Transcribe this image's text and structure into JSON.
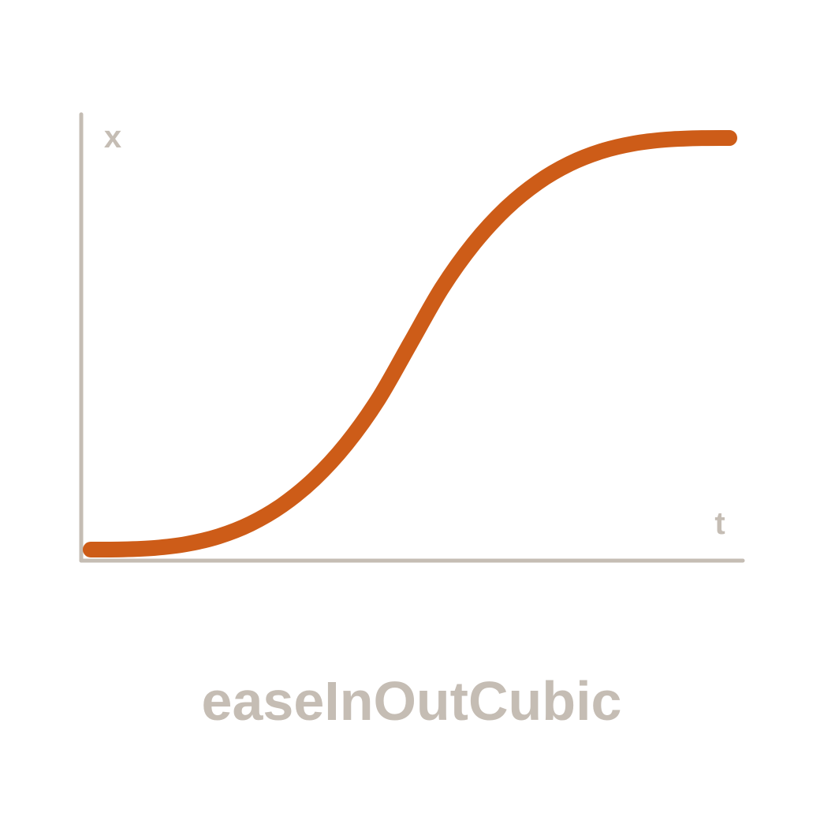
{
  "chart_data": {
    "type": "line",
    "title": "easeInOutCubic",
    "xlabel": "t",
    "ylabel": "x",
    "xlim": [
      0,
      1
    ],
    "ylim": [
      0,
      1
    ],
    "grid": false,
    "series": [
      {
        "color": "#cd5c18",
        "x": [
          0,
          0.05,
          0.1,
          0.15,
          0.2,
          0.25,
          0.3,
          0.35,
          0.4,
          0.45,
          0.5,
          0.55,
          0.6,
          0.65,
          0.7,
          0.75,
          0.8,
          0.85,
          0.9,
          0.95,
          1
        ],
        "y": [
          0,
          0.0005,
          0.004,
          0.0135,
          0.032,
          0.0625,
          0.108,
          0.1715,
          0.256,
          0.3645,
          0.5,
          0.6355,
          0.744,
          0.8285,
          0.892,
          0.9375,
          0.968,
          0.9865,
          0.996,
          0.9995,
          1
        ]
      }
    ]
  },
  "colors": {
    "axis": "#c5bdb4",
    "curve": "#cd5c18",
    "background": "#ffffff"
  }
}
